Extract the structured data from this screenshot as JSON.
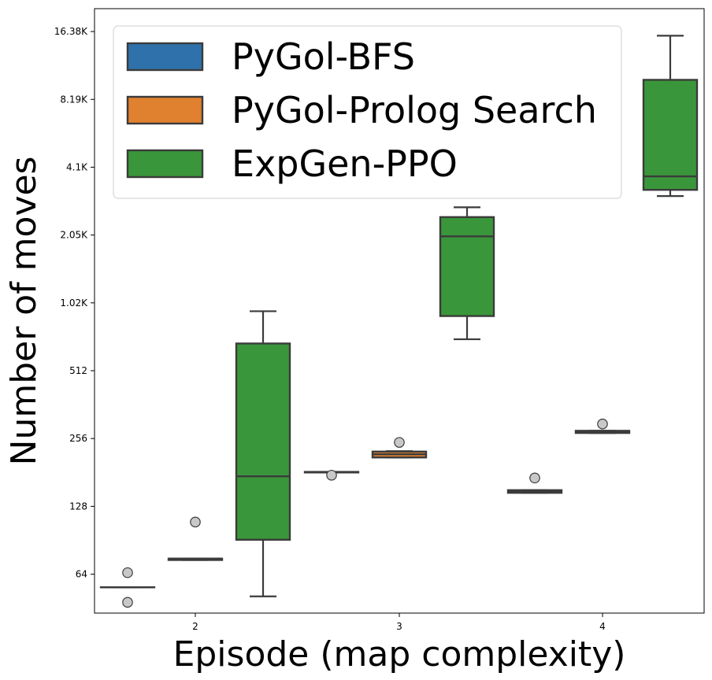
{
  "chart_data": {
    "type": "box",
    "xlabel": "Episode (map complexity)",
    "ylabel": "Number of moves",
    "yscale": "log2",
    "ylim": [
      43,
      20700
    ],
    "ytick_values": [
      64,
      128,
      256,
      512,
      1024,
      2048,
      4096,
      8192,
      16384
    ],
    "ytick_labels": [
      "64",
      "128",
      "256",
      "512",
      "1.02K",
      "2.05K",
      "4.1K",
      "8.19K",
      "16.38K"
    ],
    "categories": [
      "2",
      "3",
      "4"
    ],
    "legend_position": "upper-left",
    "series": [
      {
        "name": "PyGol-BFS",
        "color": "#2f72ab",
        "boxes": [
          {
            "category": "2",
            "q1": 56,
            "median": 56,
            "q3": 56,
            "whisker_low": 56,
            "whisker_high": 56,
            "outliers": [
              65,
              48
            ]
          },
          {
            "category": "3",
            "q1": 181,
            "median": 181,
            "q3": 182,
            "whisker_low": 181,
            "whisker_high": 182,
            "outliers": [
              176
            ]
          },
          {
            "category": "4",
            "q1": 147,
            "median": 149,
            "q3": 151,
            "whisker_low": 147,
            "whisker_high": 151,
            "outliers": [
              171
            ]
          }
        ]
      },
      {
        "name": "PyGol-Prolog Search",
        "color": "#e0812f",
        "boxes": [
          {
            "category": "2",
            "q1": 74,
            "median": 75,
            "q3": 75,
            "whisker_low": 74,
            "whisker_high": 75,
            "outliers": [
              109
            ]
          },
          {
            "category": "3",
            "q1": 211,
            "median": 218,
            "q3": 224,
            "whisker_low": 211,
            "whisker_high": 225,
            "outliers": [
              246
            ]
          },
          {
            "category": "4",
            "q1": 271,
            "median": 273,
            "q3": 277,
            "whisker_low": 271,
            "whisker_high": 277,
            "outliers": [
              297
            ]
          }
        ]
      },
      {
        "name": "ExpGen-PPO",
        "color": "#3a963a",
        "boxes": [
          {
            "category": "2",
            "q1": 91,
            "median": 174,
            "q3": 676,
            "whisker_low": 51,
            "whisker_high": 940,
            "outliers": []
          },
          {
            "category": "3",
            "q1": 895,
            "median": 2020,
            "q3": 2460,
            "whisker_low": 706,
            "whisker_high": 2720,
            "outliers": []
          },
          {
            "category": "4",
            "q1": 3250,
            "median": 3730,
            "q3": 10000,
            "whisker_low": 3050,
            "whisker_high": 15700,
            "outliers": []
          }
        ]
      }
    ]
  }
}
